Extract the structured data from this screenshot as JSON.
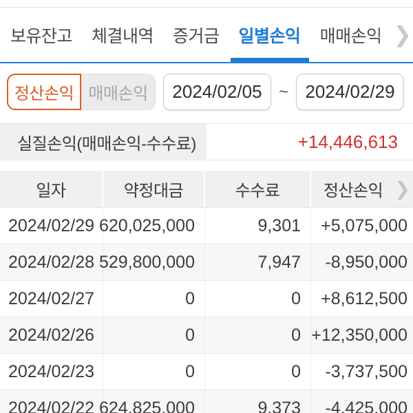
{
  "colors": {
    "accent_blue": "#1e7ed0",
    "accent_orange": "#dd5a22",
    "profit_red": "#d43031",
    "loss_blue": "#1f46b4"
  },
  "icons": {
    "tabs_more_chevron": "❯",
    "table_more_chevron": "❯"
  },
  "tabs": {
    "items": [
      {
        "label": "보유잔고",
        "active": false
      },
      {
        "label": "체결내역",
        "active": false
      },
      {
        "label": "증거금",
        "active": false
      },
      {
        "label": "일별손익",
        "active": true
      },
      {
        "label": "매매손익",
        "active": false
      }
    ]
  },
  "filter": {
    "segments": [
      {
        "label": "정산손익",
        "selected": true
      },
      {
        "label": "매매손익",
        "selected": false
      }
    ],
    "date_from": "2024/02/05",
    "date_separator": "~",
    "date_to": "2024/02/29"
  },
  "summary": {
    "label": "실질손익(매매손익-수수료)",
    "value": "+14,446,613"
  },
  "table": {
    "headers": [
      "일자",
      "약정대금",
      "수수료",
      "정산손익"
    ],
    "rows": [
      {
        "date": "2024/02/29",
        "contract_amount": "620,025,000",
        "fee": "9,301",
        "settlement_pl": "+5,075,000"
      },
      {
        "date": "2024/02/28",
        "contract_amount": "529,800,000",
        "fee": "7,947",
        "settlement_pl": "-8,950,000"
      },
      {
        "date": "2024/02/27",
        "contract_amount": "0",
        "fee": "0",
        "settlement_pl": "+8,612,500"
      },
      {
        "date": "2024/02/26",
        "contract_amount": "0",
        "fee": "0",
        "settlement_pl": "+12,350,000"
      },
      {
        "date": "2024/02/23",
        "contract_amount": "0",
        "fee": "0",
        "settlement_pl": "-3,737,500"
      },
      {
        "date": "2024/02/22",
        "contract_amount": "624,825,000",
        "fee": "9,373",
        "settlement_pl": "-4,425,000"
      }
    ]
  }
}
